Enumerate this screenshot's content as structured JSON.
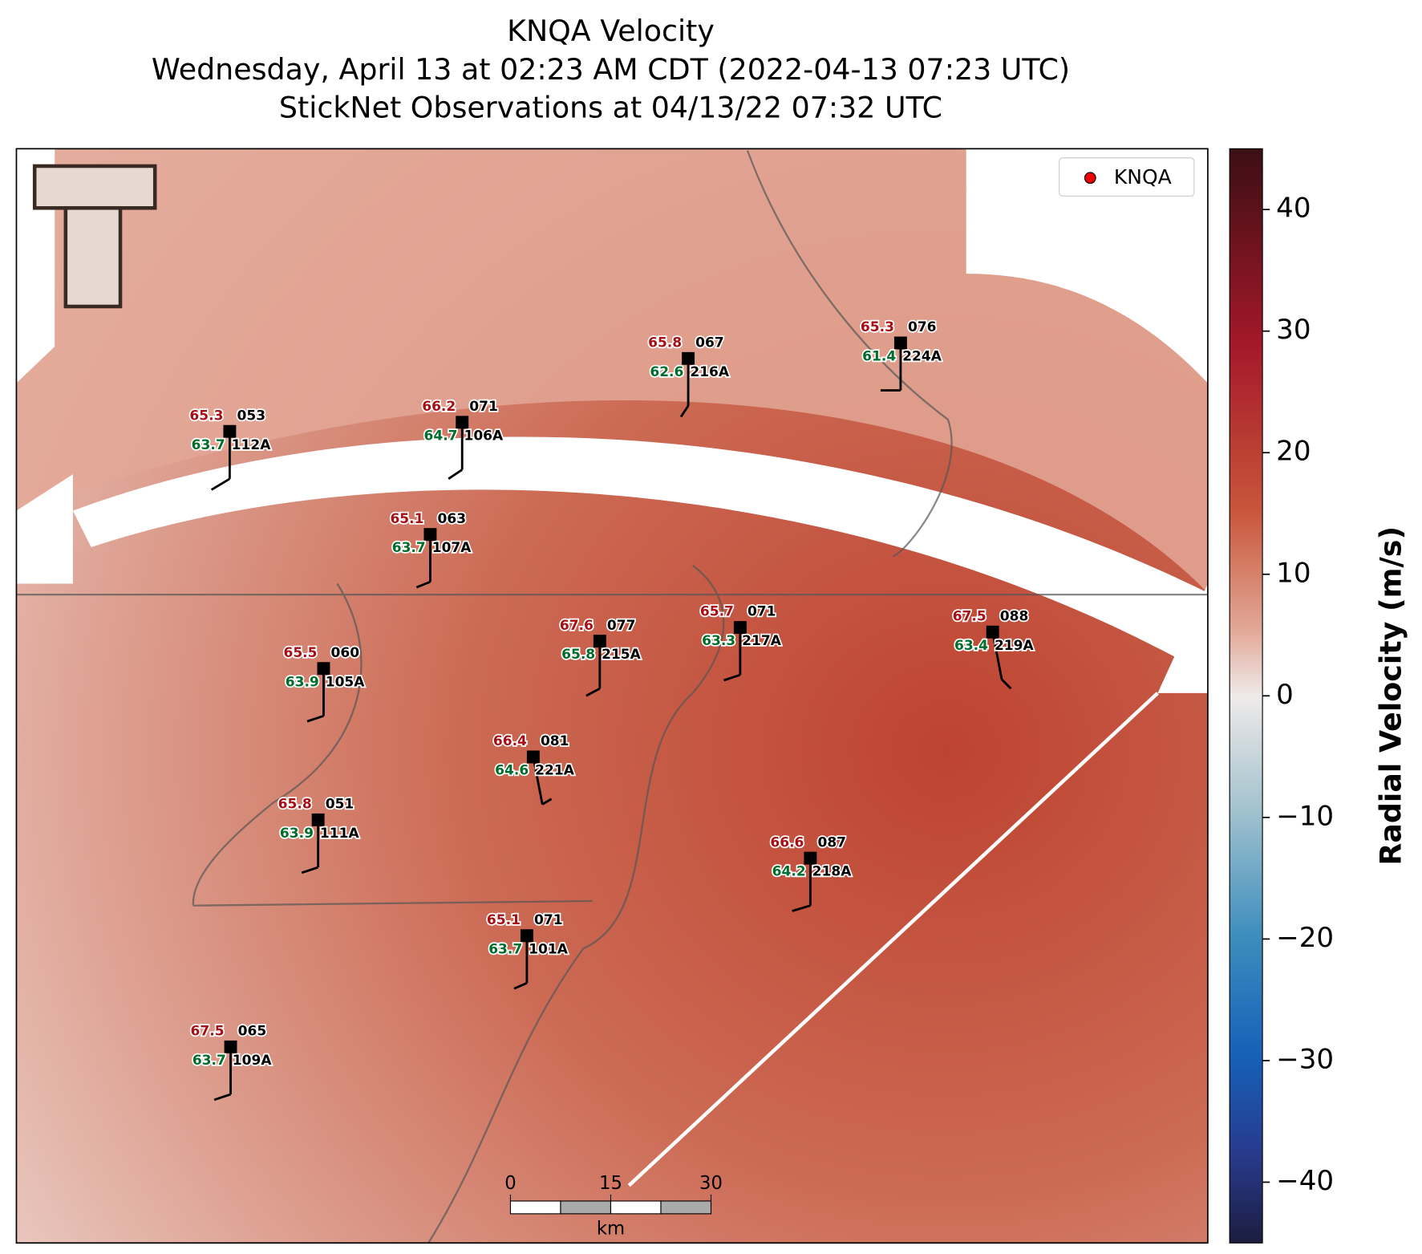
{
  "chart_data": {
    "type": "radar-map",
    "title": [
      "KNQA Velocity",
      "Wednesday, April 13 at 02:23 AM CDT (2022-04-13 07:23 UTC)",
      "StickNet Observations at 04/13/22 07:32 UTC"
    ],
    "legend": "KNQA",
    "colorbar": {
      "label": "Radial Velocity (m/s)",
      "ylim": [
        -45,
        45
      ],
      "yticks": [
        40,
        30,
        20,
        10,
        0,
        {
          "value": -10,
          "label": "−10"
        },
        {
          "value": -20,
          "label": "−20"
        },
        {
          "value": -30,
          "label": "−30"
        },
        {
          "value": -40,
          "label": "−40"
        }
      ]
    },
    "scale_bar": {
      "ticks": [
        0,
        15,
        30
      ],
      "unit": "km"
    },
    "stations": [
      {
        "id": "112A",
        "temp": 65.3,
        "dewpoint": 63.7,
        "code": "053"
      },
      {
        "id": "106A",
        "temp": 66.2,
        "dewpoint": 64.7,
        "code": "071"
      },
      {
        "id": "216A",
        "temp": 65.8,
        "dewpoint": 62.6,
        "code": "067"
      },
      {
        "id": "224A",
        "temp": 65.3,
        "dewpoint": 61.4,
        "code": "076"
      },
      {
        "id": "107A",
        "temp": 65.1,
        "dewpoint": 63.7,
        "code": "063"
      },
      {
        "id": "215A",
        "temp": 67.6,
        "dewpoint": 65.8,
        "code": "077"
      },
      {
        "id": "217A",
        "temp": 65.7,
        "dewpoint": 63.3,
        "code": "071"
      },
      {
        "id": "219A",
        "temp": 67.5,
        "dewpoint": 63.4,
        "code": "088"
      },
      {
        "id": "105A",
        "temp": 65.5,
        "dewpoint": 63.9,
        "code": "060"
      },
      {
        "id": "221A",
        "temp": 66.4,
        "dewpoint": 64.6,
        "code": "081"
      },
      {
        "id": "111A",
        "temp": 65.8,
        "dewpoint": 63.9,
        "code": "051"
      },
      {
        "id": "218A",
        "temp": 66.6,
        "dewpoint": 64.2,
        "code": "087"
      },
      {
        "id": "101A",
        "temp": 65.1,
        "dewpoint": 63.7,
        "code": "071"
      },
      {
        "id": "109A",
        "temp": 67.5,
        "dewpoint": 63.7,
        "code": "065"
      }
    ]
  }
}
